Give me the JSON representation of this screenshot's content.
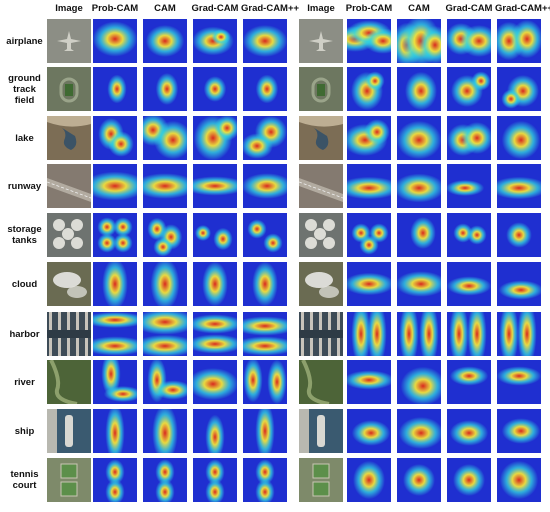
{
  "columns": [
    "Image",
    "Prob-CAM",
    "CAM",
    "Grad-CAM",
    "Grad-CAM++",
    "Image",
    "Prob-CAM",
    "CAM",
    "Grad-CAM",
    "Grad-CAM++"
  ],
  "rows": [
    {
      "label_lines": [
        "airplane"
      ],
      "photo": [
        "#8c8e85",
        "#cfcfc6"
      ],
      "sample": "airplane"
    },
    {
      "label_lines": [
        "ground",
        "track",
        "field"
      ],
      "photo": [
        "#6d7760",
        "#9aa48a"
      ],
      "sample": "track"
    },
    {
      "label_lines": [
        "lake"
      ],
      "photo": [
        "#7c6d55",
        "#bdae93"
      ],
      "sample": "lake"
    },
    {
      "label_lines": [
        "runway"
      ],
      "photo": [
        "#847a70",
        "#b2aba0"
      ],
      "sample": "runway"
    },
    {
      "label_lines": [
        "storage",
        "tanks"
      ],
      "photo": [
        "#6e7370",
        "#dcdcd6"
      ],
      "sample": "tanks"
    },
    {
      "label_lines": [
        "cloud"
      ],
      "photo": [
        "#6a6b52",
        "#e8e8e4"
      ],
      "sample": "cloud"
    },
    {
      "label_lines": [
        "harbor"
      ],
      "photo": [
        "#3e4c57",
        "#c8c4bc"
      ],
      "sample": "harbor"
    },
    {
      "label_lines": [
        "river"
      ],
      "photo": [
        "#4d6438",
        "#8da06c"
      ],
      "sample": "river"
    },
    {
      "label_lines": [
        "ship"
      ],
      "photo": [
        "#3a5a70",
        "#d8d8d2"
      ],
      "sample": "ship"
    },
    {
      "label_lines": [
        "tennis",
        "court"
      ],
      "photo": [
        "#7e8a6a",
        "#c9c6b4"
      ],
      "sample": "tennis"
    }
  ],
  "colors": {
    "heat_low": "#1f2fd0",
    "heat_mid": "#33d6e0",
    "heat_warm": "#f2e23a",
    "heat_high": "#d8281f"
  }
}
